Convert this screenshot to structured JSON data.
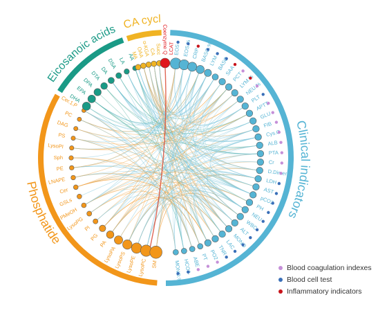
{
  "groups": {
    "tca": {
      "label": "TCA cycle",
      "color": "#f0b323"
    },
    "eico": {
      "label": "Eicosanoic acids",
      "color": "#1a9a86"
    },
    "phos": {
      "label": "Phosphatide",
      "color": "#f2961a"
    },
    "clin": {
      "label": "Clinical indicators",
      "color": "#55b4d4"
    }
  },
  "highlight": {
    "coenzyme": "Coenzyme Q",
    "lcat": "LCAT",
    "coenzyme_color": "#e0151b"
  },
  "nodes": {
    "tca": [
      "Succ",
      "CA",
      "α-KGA",
      "OAA",
      "MA"
    ],
    "eico": [
      "AA",
      "LA",
      "DSA",
      "DA",
      "DTA",
      "DPA",
      "EPA",
      "DHA"
    ],
    "phos": [
      "Cer.1.P",
      "PC",
      "DAG",
      "PS",
      "LysoPI",
      "Sph",
      "PE",
      "LNAPE",
      "Cer",
      "GSLs",
      "PMeOH",
      "LysoPG",
      "PI",
      "PG",
      "PA",
      "LysoPA",
      "LysoPS",
      "LysoPE",
      "LysoPC",
      "SM"
    ],
    "clin": [
      "EOS",
      "EOS.%",
      "CRP",
      "BASO.%",
      "LYM",
      "BASO",
      "SAA",
      "PCT",
      "LYM.%",
      "NEU.%",
      "PLT",
      "APTT",
      "GLU",
      "FIB",
      "Cys.C",
      "ALB",
      "PTA",
      "Cr",
      "D.Dimer",
      "LDH",
      "AST",
      "pCO2",
      "PH",
      "NEU",
      "WBC",
      "ALT",
      "MONO",
      "LAC",
      "TNR",
      "PO2",
      "PT",
      "ABE",
      "HCO3-",
      "MONO.%"
    ]
  },
  "clin_markers": [
    "blue",
    "blue",
    "red",
    "blue",
    "blue",
    "blue",
    "red",
    "purple",
    "red",
    "purple",
    "blue",
    "purple",
    "purple",
    "purple",
    "purple",
    "purple",
    "purple",
    "purple",
    "purple",
    "blue",
    "blue",
    "blue",
    "blue",
    "blue",
    "blue",
    "blue",
    "blue",
    "blue",
    "blue",
    "purple",
    "purple",
    "purple",
    "blue",
    "blue"
  ],
  "legend": [
    {
      "label": "Blood coagulation indexes",
      "color": "#c58fd8"
    },
    {
      "label": "Blood cell test",
      "color": "#3a6fb8"
    },
    {
      "label": "Inflammatory indicators",
      "color": "#c8141b"
    }
  ]
}
